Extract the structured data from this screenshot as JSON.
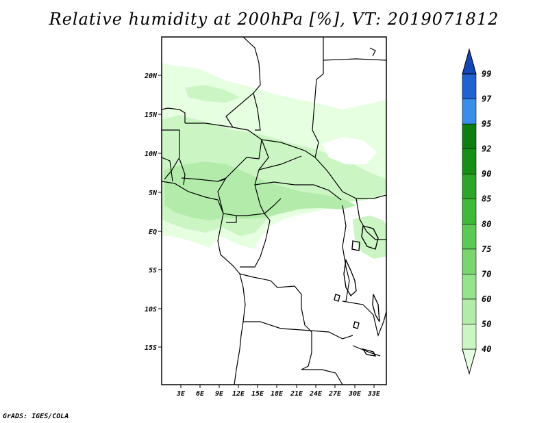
{
  "title": "Relative humidity at 200hPa [%], VT: 2019071812",
  "credit": "GrADS: IGES/COLA",
  "map": {
    "lat_labels": [
      "20N",
      "15N",
      "10N",
      "5N",
      "EQ",
      "5S",
      "10S",
      "15S"
    ],
    "lon_labels": [
      "3E",
      "6E",
      "9E",
      "12E",
      "15E",
      "18E",
      "21E",
      "24E",
      "27E",
      "30E",
      "33E"
    ]
  },
  "colorbar": {
    "labels": [
      "40",
      "50",
      "60",
      "70",
      "75",
      "80",
      "85",
      "90",
      "92",
      "95",
      "97",
      "99"
    ],
    "colors": [
      "#e6ffe0",
      "#ccf5c4",
      "#b3ecaa",
      "#96e38d",
      "#7ad56f",
      "#5cc955",
      "#40b83a",
      "#2ea52a",
      "#178f17",
      "#0f7d0f",
      "#3a8ee8",
      "#1f62d0",
      "#1446b5"
    ]
  }
}
